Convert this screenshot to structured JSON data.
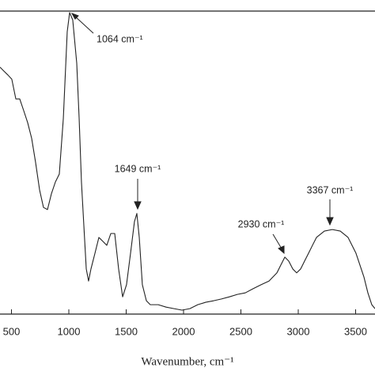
{
  "chart_data": {
    "type": "line",
    "x_label": "Wavenumber, cm⁻¹",
    "xlim": [
      400,
      3669
    ],
    "xticks": [
      500,
      1000,
      1500,
      2000,
      2500,
      3000,
      3500
    ],
    "ylim": [
      0,
      100
    ],
    "annotations": [
      "1064 cm⁻¹",
      "1649 cm⁻¹",
      "2930 cm⁻¹",
      "3367 cm⁻¹"
    ],
    "series": [
      {
        "color": "#222222",
        "x": [
          400,
          434,
          469,
          503,
          538,
          572,
          607,
          641,
          676,
          710,
          745,
          779,
          814,
          848,
          883,
          917,
          952,
          986,
          1007,
          1034,
          1069,
          1090,
          1110,
          1131,
          1152,
          1172,
          1193,
          1228,
          1262,
          1297,
          1331,
          1366,
          1400,
          1434,
          1469,
          1503,
          1538,
          1572,
          1593,
          1614,
          1641,
          1676,
          1710,
          1779,
          1848,
          1917,
          1986,
          2055,
          2124,
          2193,
          2262,
          2331,
          2400,
          2469,
          2538,
          2607,
          2676,
          2745,
          2814,
          2848,
          2883,
          2917,
          2952,
          2986,
          3021,
          3055,
          3090,
          3124,
          3159,
          3228,
          3297,
          3366,
          3434,
          3503,
          3572,
          3607,
          3641,
          3669
        ],
        "values": [
          81.5,
          80.2,
          78.9,
          77.5,
          71.0,
          71.0,
          67.1,
          63.2,
          58.0,
          50.1,
          41.0,
          35.2,
          34.5,
          39.7,
          43.6,
          46.2,
          64.5,
          93.2,
          99.5,
          97.1,
          82.8,
          64.5,
          43.6,
          29.2,
          14.9,
          10.9,
          14.9,
          20.1,
          25.3,
          24.0,
          22.7,
          26.6,
          26.6,
          14.9,
          5.7,
          9.7,
          20.1,
          30.5,
          33.2,
          25.3,
          9.7,
          4.4,
          3.1,
          3.1,
          2.3,
          1.8,
          1.3,
          1.8,
          3.1,
          3.9,
          4.4,
          5.0,
          5.7,
          6.5,
          7.0,
          8.4,
          9.7,
          10.9,
          13.6,
          16.2,
          18.8,
          17.5,
          14.9,
          13.6,
          14.9,
          17.5,
          20.1,
          22.7,
          25.3,
          27.4,
          27.9,
          27.4,
          25.3,
          20.1,
          12.3,
          7.0,
          3.1,
          1.8
        ]
      }
    ]
  }
}
